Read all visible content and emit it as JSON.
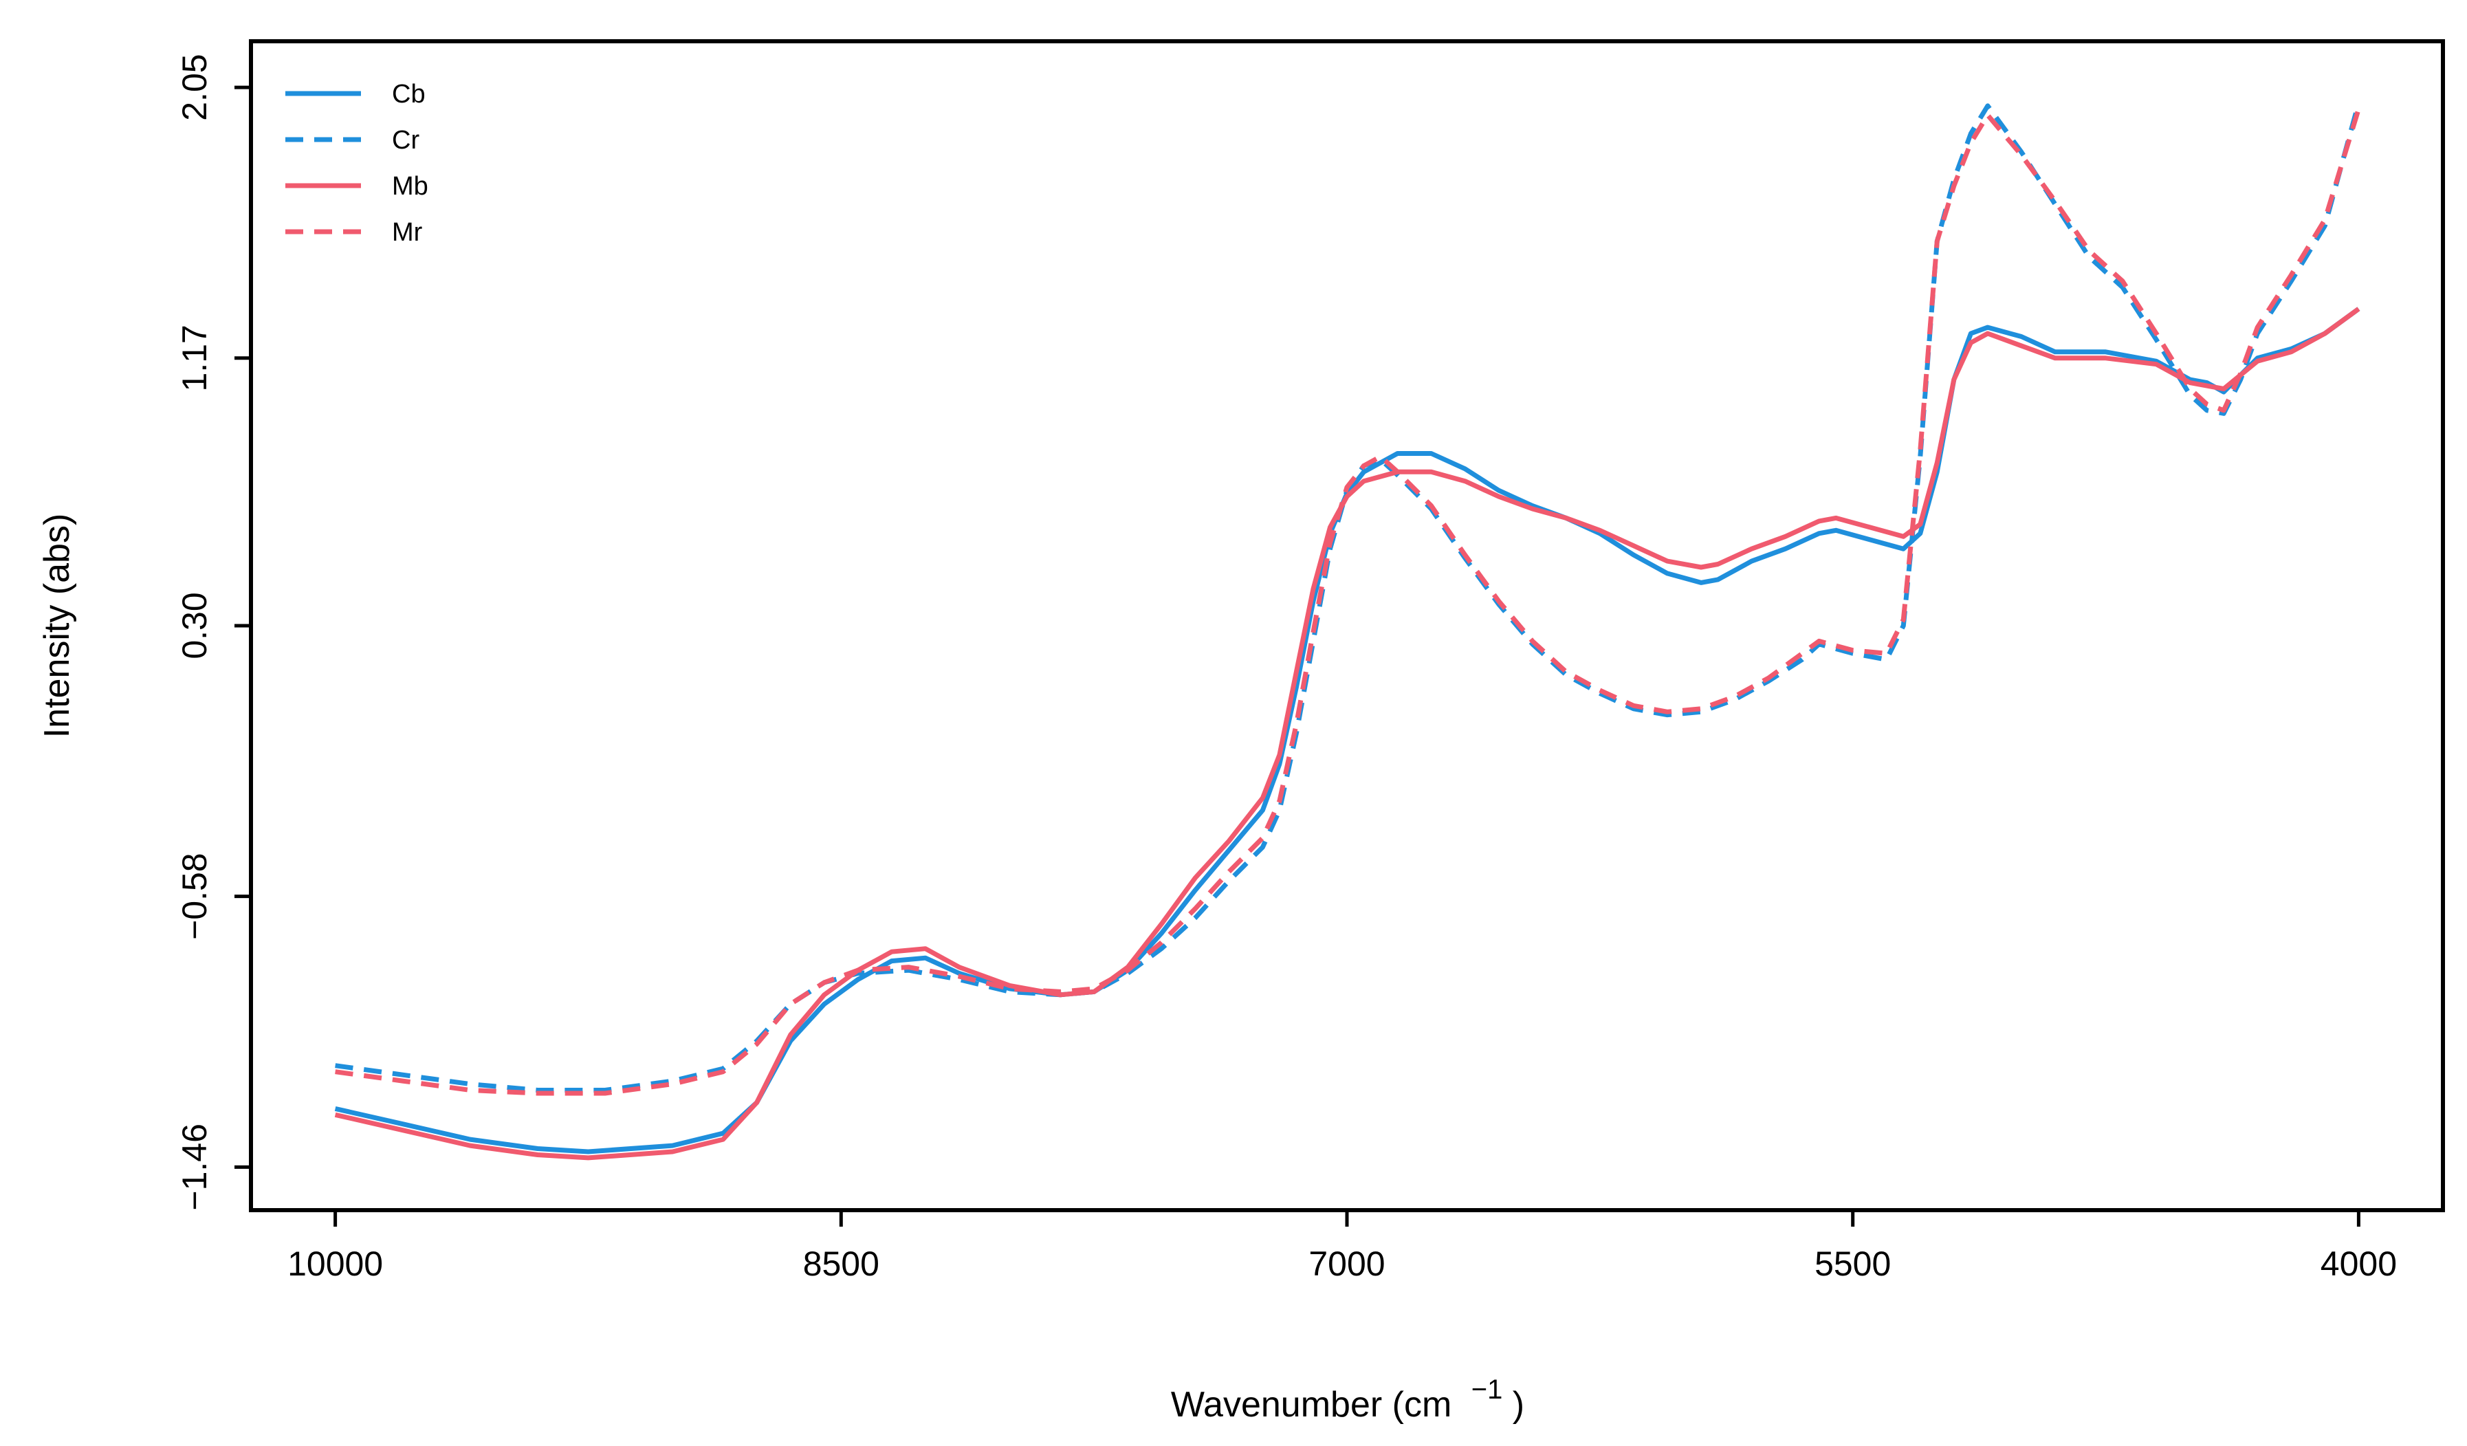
{
  "chart_data": {
    "type": "line",
    "title": "",
    "xlabel": "Wavenumber (cm",
    "xlabel_sup": "−1",
    "xlabel_close": ")",
    "ylabel": "Intensity (abs)",
    "xlim": [
      10250,
      3750
    ],
    "ylim": [
      -1.6,
      2.2
    ],
    "x_reversed": true,
    "x_ticks": [
      {
        "value": 10000,
        "label": "10000"
      },
      {
        "value": 8500,
        "label": "8500"
      },
      {
        "value": 7000,
        "label": "7000"
      },
      {
        "value": 5500,
        "label": "5500"
      },
      {
        "value": 4000,
        "label": "4000"
      }
    ],
    "y_ticks": [
      {
        "value": -1.46,
        "label": "−1.46"
      },
      {
        "value": -0.58,
        "label": "−0.58"
      },
      {
        "value": 0.3,
        "label": "0.30"
      },
      {
        "value": 1.17,
        "label": "1.17"
      },
      {
        "value": 2.05,
        "label": "2.05"
      }
    ],
    "grid": false,
    "legend_position": "top-left",
    "series": [
      {
        "name": "Cb",
        "color": "#1f8fdc",
        "dash": "solid",
        "points": [
          [
            10000,
            -1.27
          ],
          [
            9800,
            -1.32
          ],
          [
            9600,
            -1.37
          ],
          [
            9400,
            -1.4
          ],
          [
            9250,
            -1.41
          ],
          [
            9000,
            -1.39
          ],
          [
            8850,
            -1.35
          ],
          [
            8750,
            -1.25
          ],
          [
            8650,
            -1.05
          ],
          [
            8550,
            -0.93
          ],
          [
            8450,
            -0.85
          ],
          [
            8350,
            -0.79
          ],
          [
            8250,
            -0.78
          ],
          [
            8150,
            -0.83
          ],
          [
            8000,
            -0.88
          ],
          [
            7850,
            -0.9
          ],
          [
            7750,
            -0.89
          ],
          [
            7650,
            -0.82
          ],
          [
            7550,
            -0.7
          ],
          [
            7450,
            -0.56
          ],
          [
            7350,
            -0.43
          ],
          [
            7250,
            -0.3
          ],
          [
            7200,
            -0.15
          ],
          [
            7150,
            0.1
          ],
          [
            7100,
            0.38
          ],
          [
            7050,
            0.6
          ],
          [
            7000,
            0.73
          ],
          [
            6950,
            0.8
          ],
          [
            6850,
            0.86
          ],
          [
            6750,
            0.86
          ],
          [
            6650,
            0.81
          ],
          [
            6550,
            0.74
          ],
          [
            6450,
            0.69
          ],
          [
            6350,
            0.65
          ],
          [
            6250,
            0.6
          ],
          [
            6150,
            0.53
          ],
          [
            6050,
            0.47
          ],
          [
            5950,
            0.44
          ],
          [
            5900,
            0.45
          ],
          [
            5800,
            0.51
          ],
          [
            5700,
            0.55
          ],
          [
            5600,
            0.6
          ],
          [
            5550,
            0.61
          ],
          [
            5450,
            0.58
          ],
          [
            5350,
            0.55
          ],
          [
            5300,
            0.6
          ],
          [
            5250,
            0.8
          ],
          [
            5200,
            1.1
          ],
          [
            5150,
            1.25
          ],
          [
            5100,
            1.27
          ],
          [
            5000,
            1.24
          ],
          [
            4900,
            1.19
          ],
          [
            4750,
            1.19
          ],
          [
            4600,
            1.16
          ],
          [
            4500,
            1.1
          ],
          [
            4450,
            1.09
          ],
          [
            4400,
            1.06
          ],
          [
            4300,
            1.17
          ],
          [
            4200,
            1.2
          ],
          [
            4100,
            1.25
          ],
          [
            4000,
            1.33
          ]
        ]
      },
      {
        "name": "Cr",
        "color": "#1f8fdc",
        "dash": "dashed",
        "points": [
          [
            10000,
            -1.13
          ],
          [
            9800,
            -1.16
          ],
          [
            9600,
            -1.19
          ],
          [
            9400,
            -1.21
          ],
          [
            9200,
            -1.21
          ],
          [
            9000,
            -1.18
          ],
          [
            8850,
            -1.14
          ],
          [
            8750,
            -1.05
          ],
          [
            8650,
            -0.93
          ],
          [
            8550,
            -0.86
          ],
          [
            8450,
            -0.83
          ],
          [
            8300,
            -0.82
          ],
          [
            8150,
            -0.85
          ],
          [
            8000,
            -0.89
          ],
          [
            7850,
            -0.9
          ],
          [
            7750,
            -0.89
          ],
          [
            7650,
            -0.83
          ],
          [
            7550,
            -0.75
          ],
          [
            7450,
            -0.65
          ],
          [
            7350,
            -0.53
          ],
          [
            7250,
            -0.42
          ],
          [
            7200,
            -0.3
          ],
          [
            7150,
            -0.05
          ],
          [
            7100,
            0.25
          ],
          [
            7050,
            0.55
          ],
          [
            7000,
            0.74
          ],
          [
            6950,
            0.82
          ],
          [
            6900,
            0.84
          ],
          [
            6850,
            0.79
          ],
          [
            6750,
            0.68
          ],
          [
            6650,
            0.52
          ],
          [
            6550,
            0.37
          ],
          [
            6450,
            0.24
          ],
          [
            6350,
            0.14
          ],
          [
            6250,
            0.08
          ],
          [
            6150,
            0.03
          ],
          [
            6050,
            0.01
          ],
          [
            5950,
            0.02
          ],
          [
            5850,
            0.06
          ],
          [
            5750,
            0.12
          ],
          [
            5650,
            0.19
          ],
          [
            5600,
            0.24
          ],
          [
            5500,
            0.21
          ],
          [
            5400,
            0.19
          ],
          [
            5350,
            0.3
          ],
          [
            5300,
            0.85
          ],
          [
            5250,
            1.55
          ],
          [
            5200,
            1.75
          ],
          [
            5150,
            1.9
          ],
          [
            5100,
            1.99
          ],
          [
            5000,
            1.84
          ],
          [
            4900,
            1.67
          ],
          [
            4800,
            1.5
          ],
          [
            4700,
            1.4
          ],
          [
            4600,
            1.23
          ],
          [
            4500,
            1.05
          ],
          [
            4450,
            1.0
          ],
          [
            4400,
            0.99
          ],
          [
            4350,
            1.1
          ],
          [
            4300,
            1.25
          ],
          [
            4200,
            1.42
          ],
          [
            4100,
            1.6
          ],
          [
            4000,
            2.0
          ]
        ]
      },
      {
        "name": "Mb",
        "color": "#f05a6e",
        "dash": "solid",
        "points": [
          [
            10000,
            -1.29
          ],
          [
            9800,
            -1.34
          ],
          [
            9600,
            -1.39
          ],
          [
            9400,
            -1.42
          ],
          [
            9250,
            -1.43
          ],
          [
            9000,
            -1.41
          ],
          [
            8850,
            -1.37
          ],
          [
            8750,
            -1.25
          ],
          [
            8650,
            -1.03
          ],
          [
            8550,
            -0.9
          ],
          [
            8450,
            -0.82
          ],
          [
            8350,
            -0.76
          ],
          [
            8250,
            -0.75
          ],
          [
            8150,
            -0.81
          ],
          [
            8000,
            -0.87
          ],
          [
            7850,
            -0.9
          ],
          [
            7750,
            -0.89
          ],
          [
            7650,
            -0.81
          ],
          [
            7550,
            -0.67
          ],
          [
            7450,
            -0.52
          ],
          [
            7350,
            -0.4
          ],
          [
            7250,
            -0.26
          ],
          [
            7200,
            -0.12
          ],
          [
            7150,
            0.15
          ],
          [
            7100,
            0.42
          ],
          [
            7050,
            0.62
          ],
          [
            7000,
            0.72
          ],
          [
            6950,
            0.77
          ],
          [
            6850,
            0.8
          ],
          [
            6750,
            0.8
          ],
          [
            6650,
            0.77
          ],
          [
            6550,
            0.72
          ],
          [
            6450,
            0.68
          ],
          [
            6350,
            0.65
          ],
          [
            6250,
            0.61
          ],
          [
            6150,
            0.56
          ],
          [
            6050,
            0.51
          ],
          [
            5950,
            0.49
          ],
          [
            5900,
            0.5
          ],
          [
            5800,
            0.55
          ],
          [
            5700,
            0.59
          ],
          [
            5600,
            0.64
          ],
          [
            5550,
            0.65
          ],
          [
            5450,
            0.62
          ],
          [
            5350,
            0.59
          ],
          [
            5300,
            0.63
          ],
          [
            5250,
            0.83
          ],
          [
            5200,
            1.1
          ],
          [
            5150,
            1.22
          ],
          [
            5100,
            1.25
          ],
          [
            5000,
            1.21
          ],
          [
            4900,
            1.17
          ],
          [
            4750,
            1.17
          ],
          [
            4600,
            1.15
          ],
          [
            4500,
            1.09
          ],
          [
            4450,
            1.08
          ],
          [
            4400,
            1.07
          ],
          [
            4300,
            1.16
          ],
          [
            4200,
            1.19
          ],
          [
            4100,
            1.25
          ],
          [
            4000,
            1.33
          ]
        ]
      },
      {
        "name": "Mr",
        "color": "#f05a6e",
        "dash": "dashed",
        "points": [
          [
            10000,
            -1.15
          ],
          [
            9800,
            -1.18
          ],
          [
            9600,
            -1.21
          ],
          [
            9400,
            -1.22
          ],
          [
            9200,
            -1.22
          ],
          [
            9000,
            -1.19
          ],
          [
            8850,
            -1.15
          ],
          [
            8750,
            -1.06
          ],
          [
            8650,
            -0.93
          ],
          [
            8550,
            -0.86
          ],
          [
            8450,
            -0.82
          ],
          [
            8300,
            -0.81
          ],
          [
            8150,
            -0.84
          ],
          [
            8000,
            -0.88
          ],
          [
            7850,
            -0.89
          ],
          [
            7750,
            -0.88
          ],
          [
            7650,
            -0.82
          ],
          [
            7550,
            -0.73
          ],
          [
            7450,
            -0.62
          ],
          [
            7350,
            -0.5
          ],
          [
            7250,
            -0.39
          ],
          [
            7200,
            -0.27
          ],
          [
            7150,
            -0.02
          ],
          [
            7100,
            0.28
          ],
          [
            7050,
            0.57
          ],
          [
            7000,
            0.75
          ],
          [
            6950,
            0.82
          ],
          [
            6900,
            0.85
          ],
          [
            6850,
            0.8
          ],
          [
            6750,
            0.69
          ],
          [
            6650,
            0.53
          ],
          [
            6550,
            0.38
          ],
          [
            6450,
            0.25
          ],
          [
            6350,
            0.15
          ],
          [
            6250,
            0.09
          ],
          [
            6150,
            0.04
          ],
          [
            6050,
            0.02
          ],
          [
            5950,
            0.03
          ],
          [
            5850,
            0.07
          ],
          [
            5750,
            0.13
          ],
          [
            5650,
            0.21
          ],
          [
            5600,
            0.25
          ],
          [
            5500,
            0.22
          ],
          [
            5400,
            0.21
          ],
          [
            5350,
            0.32
          ],
          [
            5300,
            0.87
          ],
          [
            5250,
            1.55
          ],
          [
            5200,
            1.73
          ],
          [
            5150,
            1.87
          ],
          [
            5100,
            1.96
          ],
          [
            5000,
            1.83
          ],
          [
            4900,
            1.68
          ],
          [
            4800,
            1.52
          ],
          [
            4700,
            1.42
          ],
          [
            4600,
            1.25
          ],
          [
            4500,
            1.07
          ],
          [
            4450,
            1.02
          ],
          [
            4400,
            1.0
          ],
          [
            4350,
            1.12
          ],
          [
            4300,
            1.27
          ],
          [
            4200,
            1.44
          ],
          [
            4100,
            1.62
          ],
          [
            4000,
            1.98
          ]
        ]
      }
    ]
  }
}
